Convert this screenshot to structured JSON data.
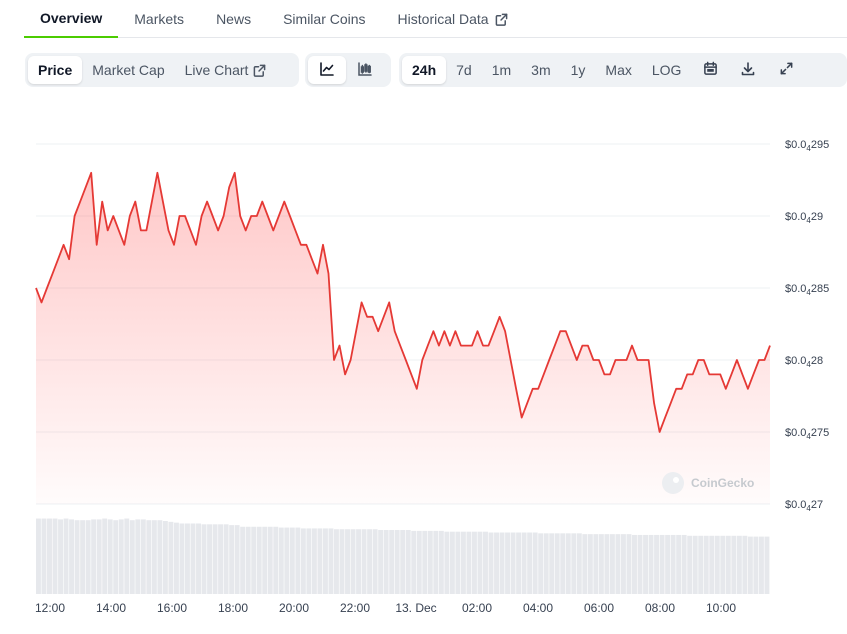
{
  "tabs": [
    {
      "label": "Overview",
      "active": true
    },
    {
      "label": "Markets"
    },
    {
      "label": "News"
    },
    {
      "label": "Similar Coins"
    },
    {
      "label": "Historical Data",
      "external": true
    }
  ],
  "toolbar": {
    "chart_tabs": [
      {
        "label": "Price",
        "active": true
      },
      {
        "label": "Market Cap"
      },
      {
        "label": "Live Chart",
        "external": true
      }
    ],
    "view_icons": [
      "line-chart-icon",
      "candlestick-icon"
    ],
    "ranges": [
      {
        "label": "24h",
        "active": true
      },
      {
        "label": "7d"
      },
      {
        "label": "1m"
      },
      {
        "label": "3m"
      },
      {
        "label": "1y"
      },
      {
        "label": "Max"
      },
      {
        "label": "LOG"
      }
    ],
    "action_icons": [
      "calendar-icon",
      "download-icon",
      "fullscreen-icon"
    ]
  },
  "watermark": "CoinGecko",
  "colors": {
    "line": "#e53935",
    "fill": "#ff5252",
    "volume": "#e6e8ec",
    "accent": "#4bcc00"
  },
  "chart_data": {
    "type": "line",
    "y_ticks": [
      {
        "value": 4.27e-05,
        "prefix": "$0.0",
        "sub": "4",
        "suffix": "27"
      },
      {
        "value": 4.275e-05,
        "prefix": "$0.0",
        "sub": "4",
        "suffix": "275"
      },
      {
        "value": 4.28e-05,
        "prefix": "$0.0",
        "sub": "4",
        "suffix": "28"
      },
      {
        "value": 4.285e-05,
        "prefix": "$0.0",
        "sub": "4",
        "suffix": "285"
      },
      {
        "value": 4.29e-05,
        "prefix": "$0.0",
        "sub": "4",
        "suffix": "29"
      },
      {
        "value": 4.295e-05,
        "prefix": "$0.0",
        "sub": "4",
        "suffix": "295"
      }
    ],
    "ylim": [
      4.27e-05,
      4.295e-05
    ],
    "x_ticks": [
      "12:00",
      "14:00",
      "16:00",
      "18:00",
      "20:00",
      "22:00",
      "13. Dec",
      "02:00",
      "04:00",
      "06:00",
      "08:00",
      "10:00"
    ],
    "price": [
      4.285e-05,
      4.284e-05,
      4.285e-05,
      4.286e-05,
      4.287e-05,
      4.288e-05,
      4.287e-05,
      4.29e-05,
      4.291e-05,
      4.292e-05,
      4.293e-05,
      4.288e-05,
      4.291e-05,
      4.289e-05,
      4.29e-05,
      4.289e-05,
      4.288e-05,
      4.29e-05,
      4.291e-05,
      4.289e-05,
      4.289e-05,
      4.291e-05,
      4.293e-05,
      4.291e-05,
      4.289e-05,
      4.288e-05,
      4.29e-05,
      4.29e-05,
      4.289e-05,
      4.288e-05,
      4.29e-05,
      4.291e-05,
      4.29e-05,
      4.289e-05,
      4.29e-05,
      4.292e-05,
      4.293e-05,
      4.29e-05,
      4.289e-05,
      4.29e-05,
      4.29e-05,
      4.291e-05,
      4.29e-05,
      4.289e-05,
      4.29e-05,
      4.291e-05,
      4.29e-05,
      4.289e-05,
      4.288e-05,
      4.288e-05,
      4.287e-05,
      4.286e-05,
      4.288e-05,
      4.286e-05,
      4.28e-05,
      4.281e-05,
      4.279e-05,
      4.28e-05,
      4.282e-05,
      4.284e-05,
      4.283e-05,
      4.283e-05,
      4.282e-05,
      4.283e-05,
      4.284e-05,
      4.282e-05,
      4.281e-05,
      4.28e-05,
      4.279e-05,
      4.278e-05,
      4.28e-05,
      4.281e-05,
      4.282e-05,
      4.281e-05,
      4.282e-05,
      4.281e-05,
      4.282e-05,
      4.281e-05,
      4.281e-05,
      4.281e-05,
      4.282e-05,
      4.281e-05,
      4.281e-05,
      4.282e-05,
      4.283e-05,
      4.282e-05,
      4.28e-05,
      4.278e-05,
      4.276e-05,
      4.277e-05,
      4.278e-05,
      4.278e-05,
      4.279e-05,
      4.28e-05,
      4.281e-05,
      4.282e-05,
      4.282e-05,
      4.281e-05,
      4.28e-05,
      4.281e-05,
      4.281e-05,
      4.28e-05,
      4.28e-05,
      4.279e-05,
      4.279e-05,
      4.28e-05,
      4.28e-05,
      4.28e-05,
      4.281e-05,
      4.28e-05,
      4.28e-05,
      4.28e-05,
      4.277e-05,
      4.275e-05,
      4.276e-05,
      4.277e-05,
      4.278e-05,
      4.278e-05,
      4.279e-05,
      4.279e-05,
      4.28e-05,
      4.28e-05,
      4.279e-05,
      4.279e-05,
      4.279e-05,
      4.278e-05,
      4.279e-05,
      4.28e-05,
      4.279e-05,
      4.278e-05,
      4.279e-05,
      4.28e-05,
      4.28e-05,
      4.281e-05
    ],
    "volume": [
      0.92,
      0.92,
      0.92,
      0.92,
      0.91,
      0.92,
      0.91,
      0.9,
      0.9,
      0.9,
      0.91,
      0.91,
      0.92,
      0.91,
      0.9,
      0.91,
      0.92,
      0.9,
      0.91,
      0.91,
      0.9,
      0.9,
      0.9,
      0.89,
      0.88,
      0.87,
      0.86,
      0.86,
      0.86,
      0.86,
      0.85,
      0.85,
      0.85,
      0.85,
      0.85,
      0.84,
      0.84,
      0.82,
      0.82,
      0.82,
      0.82,
      0.82,
      0.82,
      0.82,
      0.81,
      0.81,
      0.81,
      0.81,
      0.8,
      0.8,
      0.8,
      0.8,
      0.8,
      0.8,
      0.79,
      0.79,
      0.79,
      0.79,
      0.79,
      0.79,
      0.79,
      0.79,
      0.78,
      0.78,
      0.78,
      0.78,
      0.78,
      0.78,
      0.77,
      0.77,
      0.77,
      0.77,
      0.77,
      0.77,
      0.76,
      0.76,
      0.76,
      0.76,
      0.76,
      0.76,
      0.76,
      0.76,
      0.75,
      0.75,
      0.75,
      0.75,
      0.75,
      0.75,
      0.75,
      0.75,
      0.75,
      0.74,
      0.74,
      0.74,
      0.74,
      0.74,
      0.74,
      0.74,
      0.74,
      0.73,
      0.73,
      0.73,
      0.73,
      0.73,
      0.73,
      0.73,
      0.73,
      0.73,
      0.72,
      0.72,
      0.72,
      0.72,
      0.72,
      0.72,
      0.72,
      0.72,
      0.72,
      0.72,
      0.71,
      0.71,
      0.71,
      0.71,
      0.71,
      0.71,
      0.71,
      0.71,
      0.71,
      0.71,
      0.71,
      0.7,
      0.7,
      0.7,
      0.7
    ],
    "grid": true
  }
}
